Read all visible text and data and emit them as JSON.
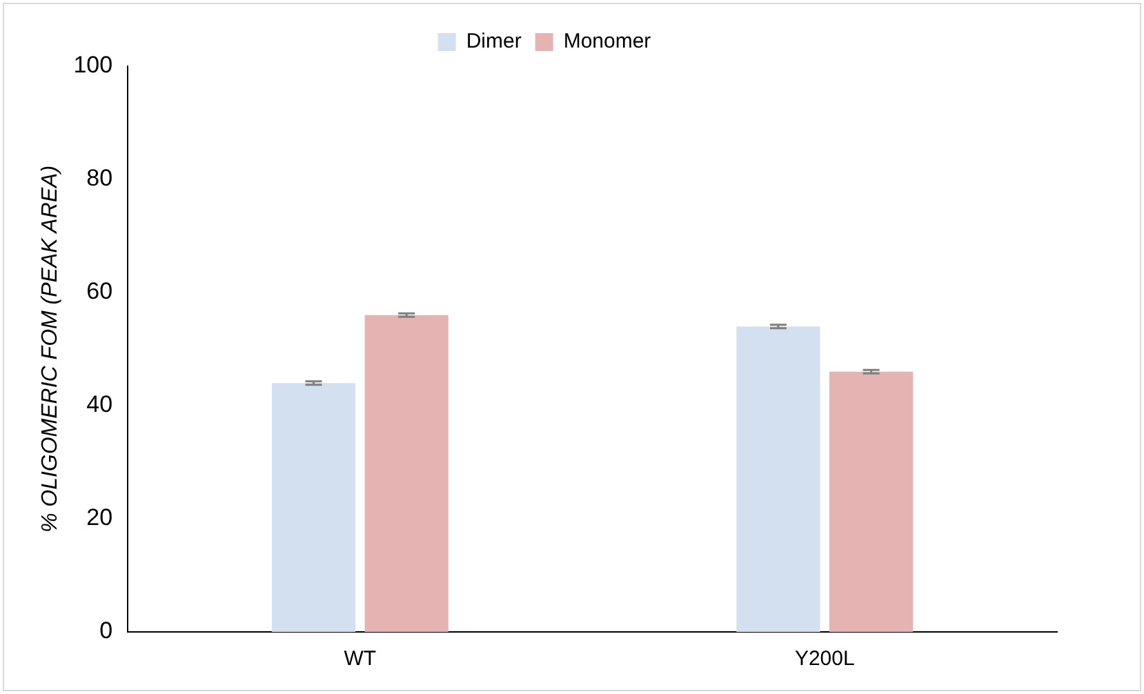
{
  "chart_data": {
    "type": "bar",
    "ylabel": "% OLIGOMERIC FOM (PEAK AREA)",
    "categories": [
      "WT",
      "Y200L"
    ],
    "series": [
      {
        "name": "Dimer",
        "color": "#d3e0ef",
        "values": [
          44,
          54
        ],
        "errors": [
          0.3,
          0.3
        ]
      },
      {
        "name": "Monomer",
        "color": "#e4b3b2",
        "values": [
          56,
          46
        ],
        "errors": [
          0.3,
          0.3
        ]
      }
    ],
    "ylim": [
      0,
      100
    ],
    "yticks": [
      0,
      20,
      40,
      60,
      80,
      100
    ],
    "grid": false,
    "legend": "top"
  }
}
